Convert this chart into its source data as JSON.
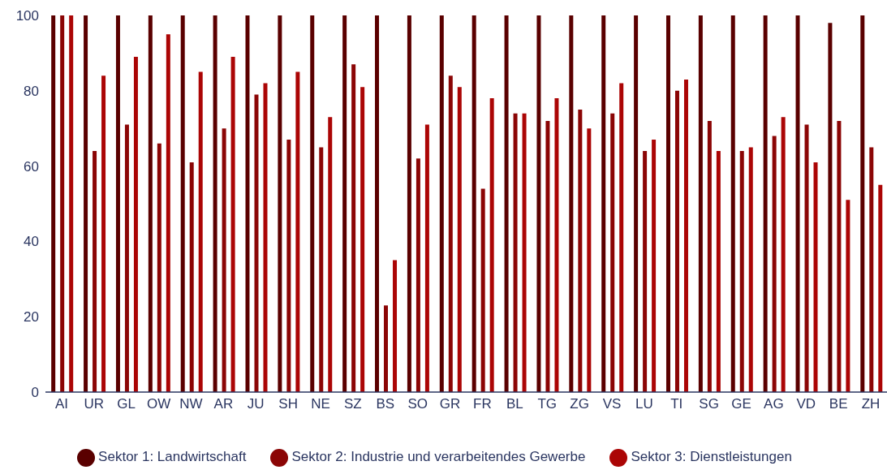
{
  "chart_data": {
    "type": "bar",
    "categories": [
      "AI",
      "UR",
      "GL",
      "OW",
      "NW",
      "AR",
      "JU",
      "SH",
      "NE",
      "SZ",
      "BS",
      "SO",
      "GR",
      "FR",
      "BL",
      "TG",
      "ZG",
      "VS",
      "LU",
      "TI",
      "SG",
      "GE",
      "AG",
      "VD",
      "BE",
      "ZH"
    ],
    "series": [
      {
        "name": "Sektor 1: Landwirtschaft",
        "color": "#5a0000",
        "values": [
          100,
          100,
          100,
          100,
          100,
          100,
          100,
          100,
          100,
          100,
          100,
          100,
          100,
          100,
          100,
          100,
          100,
          100,
          100,
          100,
          100,
          100,
          100,
          100,
          98,
          100
        ]
      },
      {
        "name": "Sektor 2: Industrie und verarbeitendes Gewerbe",
        "color": "#8b0505",
        "values": [
          100,
          64,
          71,
          66,
          61,
          70,
          79,
          67,
          65,
          87,
          23,
          62,
          84,
          54,
          74,
          72,
          75,
          74,
          64,
          80,
          72,
          64,
          68,
          71,
          72,
          65
        ]
      },
      {
        "name": "Sektor 3: Dienstleistungen",
        "color": "#ab0505",
        "values": [
          100,
          84,
          89,
          95,
          85,
          89,
          82,
          85,
          73,
          81,
          35,
          71,
          81,
          78,
          74,
          78,
          70,
          82,
          67,
          83,
          64,
          65,
          73,
          61,
          51,
          55
        ]
      }
    ],
    "ylim": [
      0,
      100
    ],
    "yticks": [
      0,
      20,
      40,
      60,
      80,
      100
    ],
    "grid": false,
    "legend": "bottom"
  }
}
